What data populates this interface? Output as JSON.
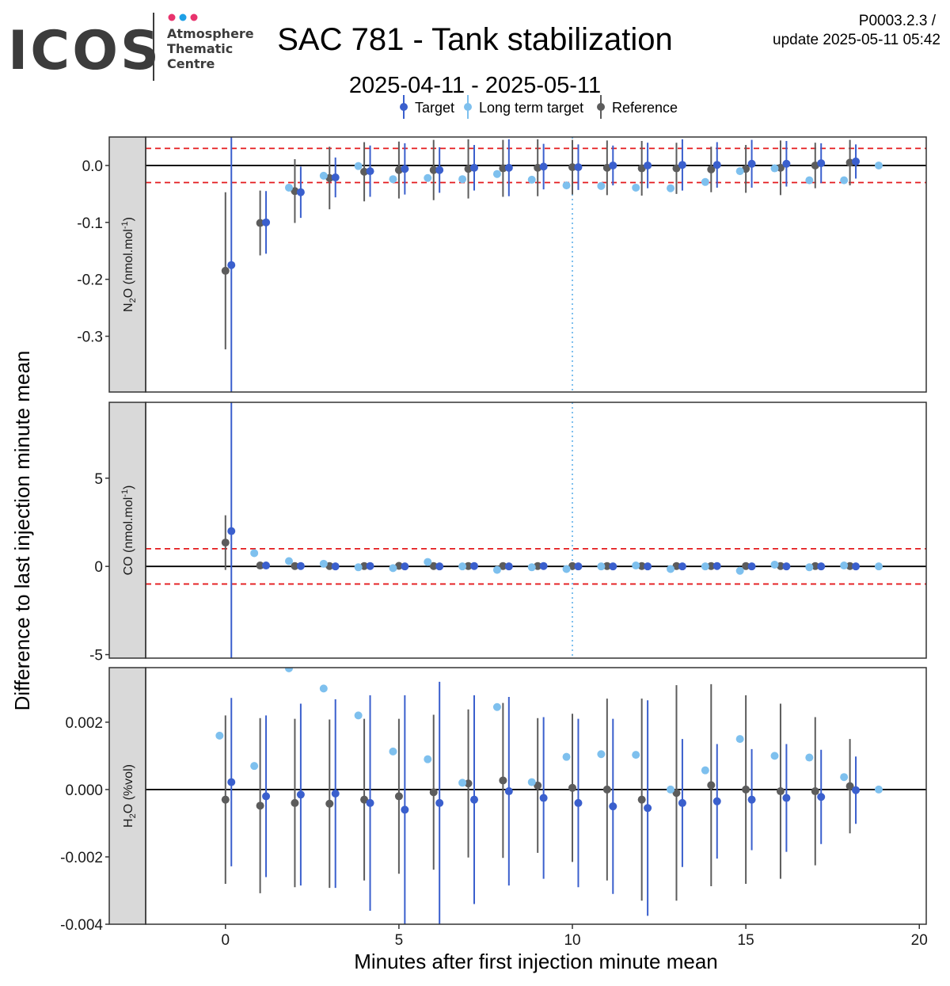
{
  "header": {
    "logo_text": "ICOS",
    "logo_sub": [
      "Atmosphere",
      "Thematic",
      "Centre"
    ],
    "title": "SAC 781 - Tank stabilization",
    "subtitle": "2025-04-11 - 2025-05-11",
    "version": "P0003.2.3 /",
    "update": "update  2025-05-11 05:42"
  },
  "legend": [
    {
      "key": "target",
      "label": "Target",
      "color": "#3a5fcd"
    },
    {
      "key": "ltt",
      "label": "Long term target",
      "color": "#7ec0ee"
    },
    {
      "key": "ref",
      "label": "Reference",
      "color": "#5c5c5c"
    }
  ],
  "chart_data": {
    "type": "scatter",
    "xlabel": "Minutes after first injection minute mean",
    "ylabel": "Difference to last injection minute mean",
    "xlim": [
      -2.3,
      20.2
    ],
    "xticks": [
      0,
      5,
      10,
      15,
      20
    ],
    "vline_x": 10,
    "panels": [
      {
        "id": "n2o",
        "strip_main": "N",
        "strip_sub": "2",
        "strip_rest": "O (nmol.mol",
        "strip_sup": "-1",
        "strip_end": ")",
        "ylim": [
          -0.398,
          0.05
        ],
        "yticks": [
          0.0,
          -0.1,
          -0.2,
          -0.3
        ],
        "ytick_labels": [
          "0.0",
          "-0.1",
          "-0.2",
          "-0.3"
        ],
        "threshold": 0.03,
        "target": {
          "x": [
            0.17,
            1.17,
            2.17,
            3.17,
            4.17,
            5.17,
            6.17,
            7.17,
            8.17,
            9.17,
            10.17,
            11.17,
            12.17,
            13.17,
            14.17,
            15.17,
            16.17,
            17.17,
            18.17
          ],
          "y": [
            -0.175,
            -0.1,
            -0.047,
            -0.021,
            -0.01,
            -0.006,
            -0.008,
            -0.004,
            -0.004,
            -0.002,
            -0.003,
            0.0,
            0.0,
            0.001,
            0.001,
            0.003,
            0.003,
            0.004,
            0.007
          ],
          "err": [
            0.29,
            0.055,
            0.045,
            0.035,
            0.045,
            0.045,
            0.04,
            0.04,
            0.05,
            0.04,
            0.04,
            0.035,
            0.04,
            0.045,
            0.04,
            0.042,
            0.04,
            0.035,
            0.03
          ]
        },
        "ltt": {
          "x": [
            1.83,
            2.83,
            3.83,
            4.83,
            5.83,
            6.83,
            7.83,
            8.83,
            9.83,
            10.83,
            11.83,
            12.83,
            13.83,
            14.83,
            15.83,
            16.83,
            17.83,
            18.83
          ],
          "y": [
            -0.039,
            -0.018,
            -0.001,
            -0.024,
            -0.022,
            -0.024,
            -0.015,
            -0.025,
            -0.035,
            -0.036,
            -0.039,
            -0.04,
            -0.029,
            -0.01,
            -0.005,
            -0.026,
            -0.026,
            0.0
          ]
        },
        "ref": {
          "x": [
            0,
            1,
            2,
            3,
            4,
            5,
            6,
            7,
            8,
            9,
            10,
            11,
            12,
            13,
            14,
            15,
            16,
            17,
            18
          ],
          "y": [
            -0.185,
            -0.101,
            -0.045,
            -0.022,
            -0.011,
            -0.008,
            -0.008,
            -0.006,
            -0.005,
            -0.004,
            -0.003,
            -0.004,
            -0.005,
            -0.005,
            -0.007,
            -0.006,
            -0.004,
            0.0,
            0.005
          ],
          "err": [
            0.138,
            0.057,
            0.056,
            0.055,
            0.052,
            0.05,
            0.053,
            0.052,
            0.05,
            0.05,
            0.048,
            0.048,
            0.048,
            0.045,
            0.04,
            0.042,
            0.048,
            0.04,
            0.04
          ]
        }
      },
      {
        "id": "co",
        "strip_main": "CO (nmol.mol",
        "strip_sub": "",
        "strip_rest": "",
        "strip_sup": "-1",
        "strip_end": ")",
        "ylim": [
          -5.2,
          9.3
        ],
        "yticks": [
          5,
          0,
          -5
        ],
        "ytick_labels": [
          "5",
          "0",
          "-5"
        ],
        "threshold": 1,
        "target": {
          "x": [
            0.17,
            1.17,
            2.17,
            3.17,
            4.17,
            5.17,
            6.17,
            7.17,
            8.17,
            9.17,
            10.17,
            11.17,
            12.17,
            13.17,
            14.17,
            15.17,
            16.17,
            17.17,
            18.17
          ],
          "y": [
            2.0,
            0.05,
            0.02,
            0.0,
            0.02,
            0.0,
            0.0,
            0.02,
            0.0,
            0.02,
            0.0,
            0.0,
            0.0,
            0.0,
            0.02,
            0.0,
            0.0,
            0.0,
            0.0
          ],
          "err": [
            12.0,
            0.1,
            0.1,
            0.1,
            0.1,
            0.1,
            0.1,
            0.1,
            0.1,
            0.1,
            0.1,
            0.1,
            0.1,
            0.1,
            0.1,
            0.1,
            0.1,
            0.1,
            0.1
          ]
        },
        "ltt": {
          "x": [
            0.83,
            1.83,
            2.83,
            3.83,
            4.83,
            5.83,
            6.83,
            7.83,
            8.83,
            9.83,
            10.83,
            11.83,
            12.83,
            13.83,
            14.83,
            15.83,
            16.83,
            17.83,
            18.83
          ],
          "y": [
            0.75,
            0.3,
            0.15,
            -0.05,
            -0.1,
            0.25,
            0.0,
            -0.2,
            -0.05,
            -0.15,
            0.0,
            0.05,
            -0.15,
            0.0,
            -0.25,
            0.1,
            -0.05,
            0.05,
            0.0
          ]
        },
        "ref": {
          "x": [
            0,
            1,
            2,
            3,
            4,
            5,
            6,
            7,
            8,
            9,
            10,
            11,
            12,
            13,
            14,
            15,
            16,
            17,
            18
          ],
          "y": [
            1.35,
            0.05,
            0.02,
            0.02,
            0.02,
            0.03,
            0.02,
            0.02,
            0.02,
            0.02,
            0.02,
            0.02,
            0.02,
            0.02,
            0.02,
            0.02,
            0.02,
            0.02,
            0.02
          ],
          "err": [
            1.55,
            0.1,
            0.1,
            0.1,
            0.1,
            0.1,
            0.1,
            0.1,
            0.1,
            0.1,
            0.1,
            0.1,
            0.1,
            0.1,
            0.1,
            0.1,
            0.1,
            0.1,
            0.1
          ]
        }
      },
      {
        "id": "h2o",
        "strip_main": "H",
        "strip_sub": "2",
        "strip_rest": "O (%vol)",
        "strip_sup": "",
        "strip_end": "",
        "ylim": [
          -0.004,
          0.00362
        ],
        "yticks": [
          0.002,
          0.0,
          -0.002,
          -0.004
        ],
        "ytick_labels": [
          "0.002",
          "0.000",
          "-0.002",
          "-0.004"
        ],
        "threshold": null,
        "target": {
          "x": [
            0.17,
            1.17,
            2.17,
            3.17,
            4.17,
            5.17,
            6.17,
            7.17,
            8.17,
            9.17,
            10.17,
            11.17,
            12.17,
            13.17,
            14.17,
            15.17,
            16.17,
            17.17,
            18.17
          ],
          "y": [
            0.00022,
            -0.0002,
            -0.00015,
            -0.00012,
            -0.0004,
            -0.0006,
            -0.0004,
            -0.0003,
            -5e-05,
            -0.00025,
            -0.0004,
            -0.0005,
            -0.00055,
            -0.0004,
            -0.00035,
            -0.0003,
            -0.00025,
            -0.00022,
            -2e-05
          ],
          "err": [
            0.0025,
            0.0024,
            0.0027,
            0.0028,
            0.0032,
            0.0034,
            0.0036,
            0.0031,
            0.0028,
            0.0024,
            0.0025,
            0.0026,
            0.0032,
            0.0019,
            0.0017,
            0.0015,
            0.0016,
            0.0014,
            0.001
          ]
        },
        "ltt": {
          "x": [
            -0.17,
            0.83,
            1.83,
            2.83,
            3.83,
            4.83,
            5.83,
            6.83,
            7.83,
            8.83,
            9.83,
            10.83,
            11.83,
            12.83,
            13.83,
            14.83,
            15.83,
            16.83,
            17.83,
            18.83
          ],
          "y": [
            0.0016,
            0.0007,
            0.0036,
            0.003,
            0.0022,
            0.00113,
            0.0009,
            0.0002,
            0.00245,
            0.00022,
            0.00097,
            0.00105,
            0.00103,
            0.0,
            0.00057,
            0.0015,
            0.001,
            0.00095,
            0.00037,
            0.0
          ],
          "err": null
        },
        "ref": {
          "x": [
            0,
            1,
            2,
            3,
            4,
            5,
            6,
            7,
            8,
            9,
            10,
            11,
            12,
            13,
            14,
            15,
            16,
            17,
            18
          ],
          "y": [
            -0.0003,
            -0.00048,
            -0.0004,
            -0.00042,
            -0.0003,
            -0.0002,
            -8e-05,
            0.00018,
            0.00027,
            0.00012,
            5e-05,
            0.0,
            -0.0003,
            -0.0001,
            0.00013,
            0.0,
            -5e-05,
            -5e-05,
            0.0001
          ],
          "err": [
            0.0025,
            0.0026,
            0.0025,
            0.0025,
            0.0024,
            0.0023,
            0.0023,
            0.0022,
            0.0023,
            0.002,
            0.0022,
            0.0027,
            0.003,
            0.0032,
            0.003,
            0.0028,
            0.0026,
            0.0022,
            0.0014
          ]
        }
      }
    ]
  }
}
